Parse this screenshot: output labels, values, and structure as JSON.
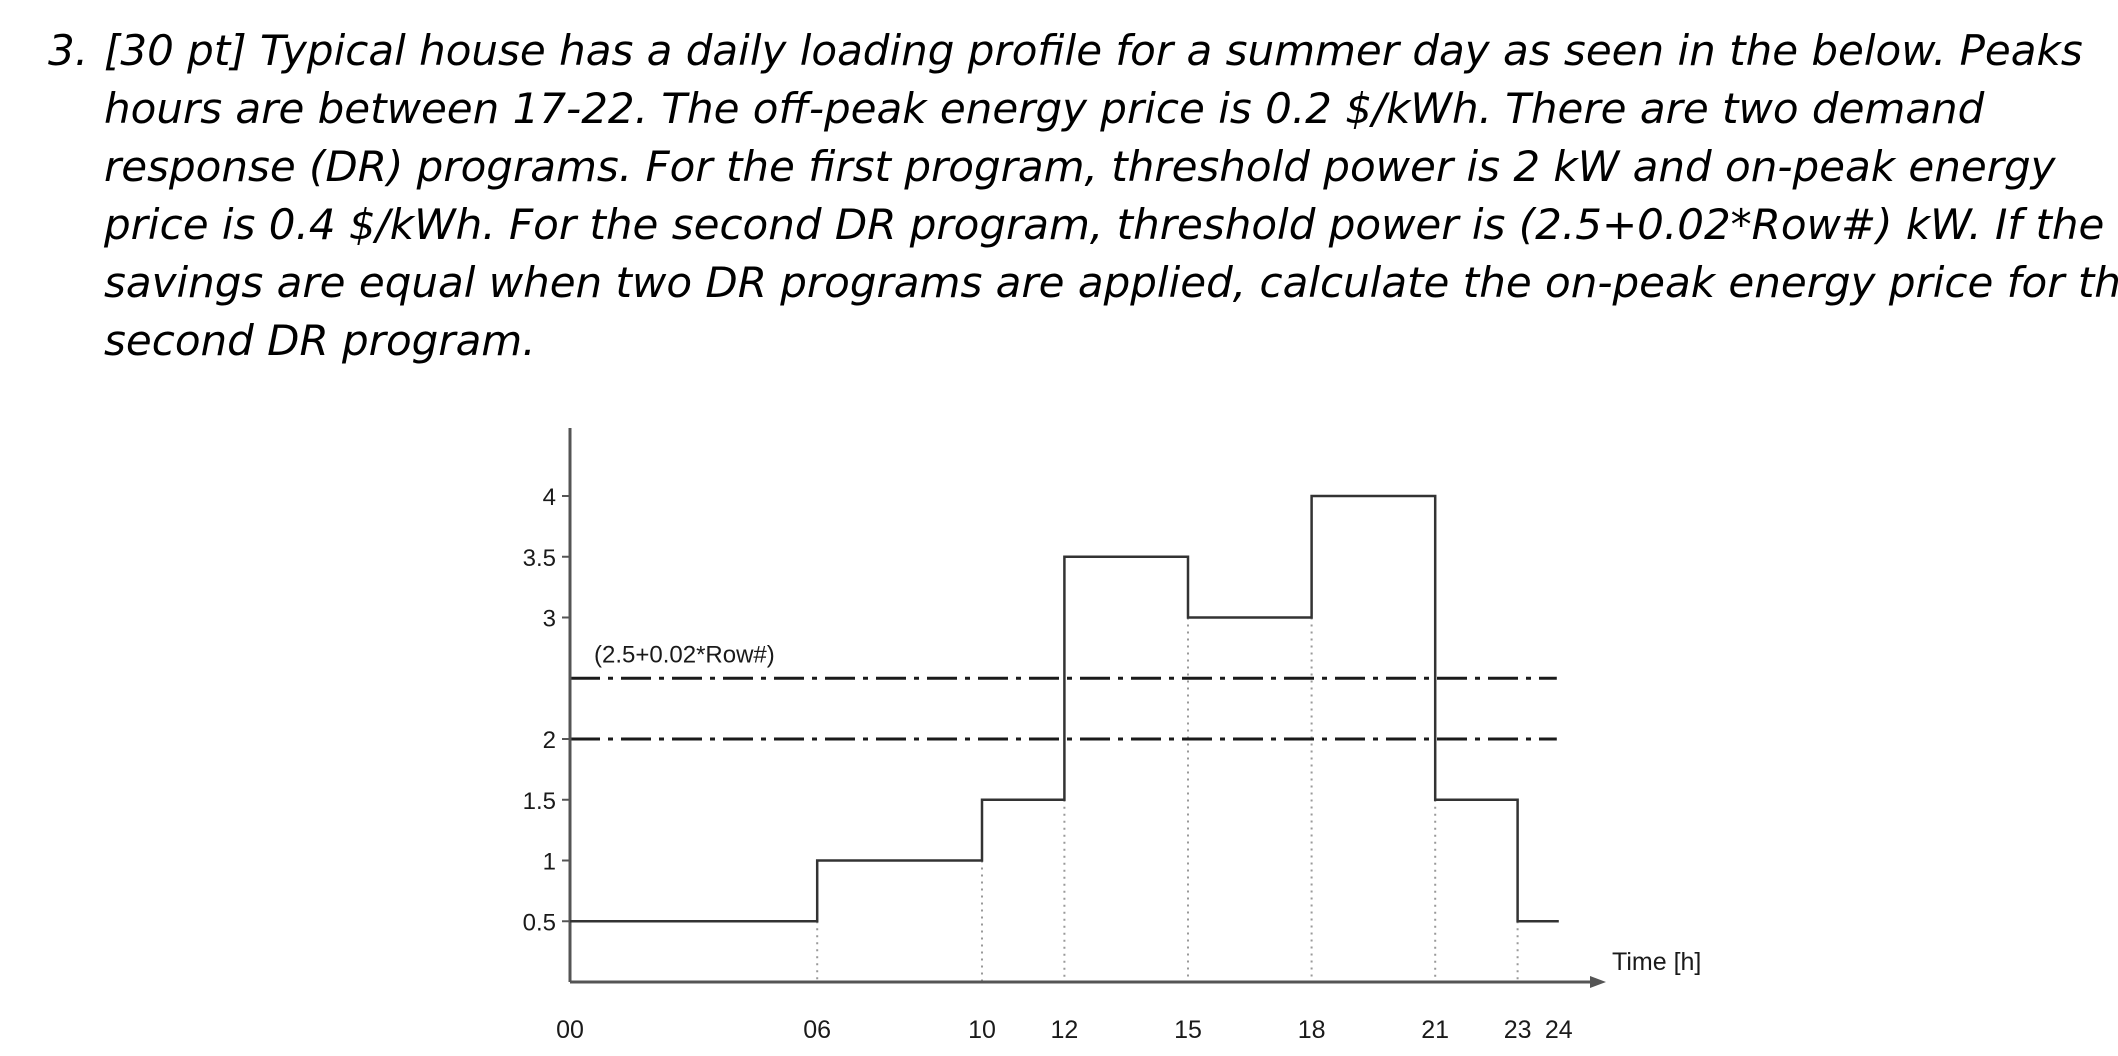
{
  "question": {
    "number": "3.",
    "lines": [
      "[30 pt] Typical house has a daily loading profile for a summer day as seen in the below. Peaks",
      "hours are between 17-22. The off-peak energy price is 0.2 $/kWh. There are two demand",
      "response (DR) programs. For the first program, threshold power is 2 kW and on-peak energy",
      "price is 0.4 $/kWh. For the second DR program, threshold power is (2.5+0.02*Row#) kW. If the",
      "savings are equal when two DR programs are applied, calculate the on-peak energy price for the",
      "second DR program."
    ]
  },
  "chart_data": {
    "type": "line",
    "step": true,
    "title": "",
    "xlabel": "Time [h]",
    "ylabel": "",
    "xlim": [
      0,
      24
    ],
    "ylim": [
      0,
      4.5
    ],
    "x_ticks": [
      {
        "value": 0,
        "label": "00"
      },
      {
        "value": 6,
        "label": "06"
      },
      {
        "value": 10,
        "label": "10"
      },
      {
        "value": 12,
        "label": "12"
      },
      {
        "value": 15,
        "label": "15"
      },
      {
        "value": 18,
        "label": "18"
      },
      {
        "value": 21,
        "label": "21"
      },
      {
        "value": 23,
        "label": "23"
      },
      {
        "value": 24,
        "label": "24"
      }
    ],
    "y_ticks": [
      {
        "value": 0.5,
        "label": "0.5"
      },
      {
        "value": 1,
        "label": "1"
      },
      {
        "value": 1.5,
        "label": "1.5"
      },
      {
        "value": 2,
        "label": "2"
      },
      {
        "value": 3,
        "label": "3"
      },
      {
        "value": 3.5,
        "label": "3.5"
      },
      {
        "value": 4,
        "label": "4"
      }
    ],
    "segments": [
      {
        "start": 0,
        "end": 6,
        "value": 0.5
      },
      {
        "start": 6,
        "end": 10,
        "value": 1
      },
      {
        "start": 10,
        "end": 12,
        "value": 1.5
      },
      {
        "start": 12,
        "end": 15,
        "value": 3.5
      },
      {
        "start": 15,
        "end": 18,
        "value": 3
      },
      {
        "start": 18,
        "end": 21,
        "value": 4
      },
      {
        "start": 21,
        "end": 23,
        "value": 1.5
      },
      {
        "start": 23,
        "end": 24,
        "value": 0.5
      }
    ],
    "dotted_guides_at": [
      6,
      10,
      12,
      15,
      18,
      21,
      23
    ],
    "thresholds": [
      {
        "value": 2.5,
        "label": "(2.5+0.02*Row#)",
        "style": "dash-dot"
      },
      {
        "value": 2,
        "label": "",
        "style": "dash-dot"
      }
    ],
    "grid": false,
    "colors": {
      "line": "#333333",
      "axis": "#555555",
      "guide": "#999999"
    }
  }
}
